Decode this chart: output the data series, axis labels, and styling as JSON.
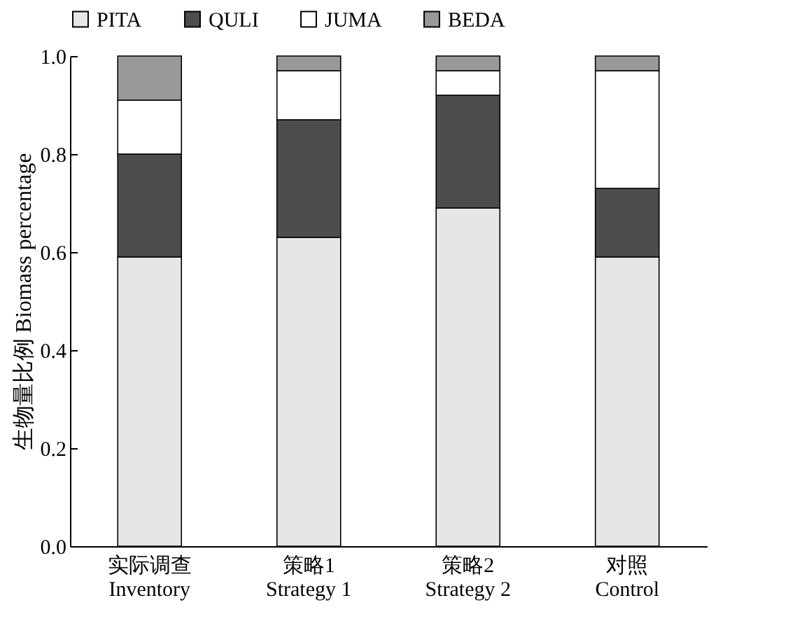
{
  "chart_data": {
    "type": "bar",
    "stacked": true,
    "ylabel": "生物量比例 Biomass percentage",
    "categories": [
      "实际调查\nInventory",
      "策略1\nStrategy 1",
      "策略2\nStrategy 2",
      "对照\nControl"
    ],
    "series": [
      {
        "name": "PITA",
        "color": "#e6e6e6",
        "values": [
          0.59,
          0.63,
          0.69,
          0.59
        ]
      },
      {
        "name": "QULI",
        "color": "#4d4d4d",
        "values": [
          0.21,
          0.24,
          0.23,
          0.14
        ]
      },
      {
        "name": "JUMA",
        "color": "#ffffff",
        "values": [
          0.11,
          0.1,
          0.05,
          0.24
        ]
      },
      {
        "name": "BEDA",
        "color": "#999999",
        "values": [
          0.09,
          0.03,
          0.03,
          0.03
        ]
      }
    ],
    "ylim": [
      0,
      1
    ],
    "yticks": [
      {
        "value": 0,
        "label": "0.0"
      },
      0.2,
      0.4,
      0.6,
      0.8,
      {
        "value": 1,
        "label": "1.0"
      }
    ],
    "grid": false,
    "legend": "top"
  }
}
